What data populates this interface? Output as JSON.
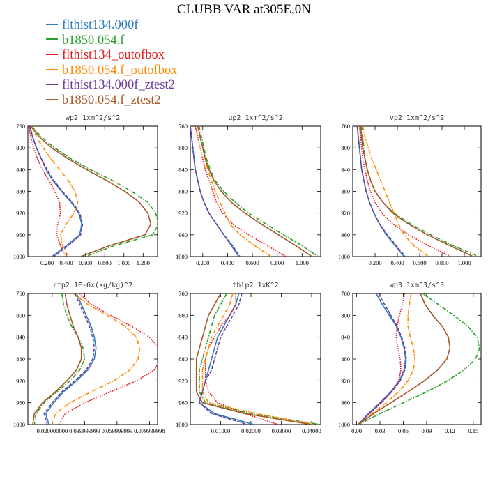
{
  "title": "CLUBB VAR at305E,0N",
  "colors": {
    "flthist134.000f": "#2f7cbf",
    "b1850.054.f": "#2ca02c",
    "flthist134_outofbox": "#e41a1c",
    "b1850.054.f_outofbox": "#ff8c00",
    "flthist134.000f_ztest2": "#6a3d9a",
    "b1850.054.f_ztest2": "#a65628"
  },
  "legend": [
    {
      "label": "flthist134.000f",
      "color": "#2f7cbf"
    },
    {
      "label": "b1850.054.f",
      "color": "#2ca02c"
    },
    {
      "label": "flthist134_outofbox",
      "color": "#e41a1c"
    },
    {
      "label": "b1850.054.f_outofbox",
      "color": "#ff8c00"
    },
    {
      "label": "flthist134.000f_ztest2",
      "color": "#6a3d9a"
    },
    {
      "label": "b1850.054.f_ztest2",
      "color": "#a65628"
    }
  ],
  "chart_data": [
    {
      "type": "line",
      "title": "wp2  1xm^2/s^2",
      "y": [
        760,
        780,
        800,
        820,
        840,
        860,
        880,
        900,
        920,
        940,
        960,
        980,
        1000
      ],
      "xlim": [
        0,
        1.35
      ],
      "ylim": [
        1000,
        760
      ],
      "xticks": [
        0.2,
        0.4,
        0.6,
        0.8,
        1.0,
        1.2
      ],
      "xtick_labels": [
        "0.200",
        "0.400",
        "0.600",
        "0.800",
        "1.000",
        "1.200"
      ],
      "yticks": [
        760,
        800,
        840,
        880,
        920,
        960,
        1000
      ],
      "series": [
        {
          "key": "flthist134.000f",
          "style": "solid",
          "x": [
            0.02,
            0.05,
            0.09,
            0.14,
            0.19,
            0.26,
            0.35,
            0.45,
            0.53,
            0.56,
            0.54,
            0.4,
            0.25
          ]
        },
        {
          "key": "b1850.054.f",
          "style": "dashdot",
          "x": [
            0.04,
            0.14,
            0.28,
            0.45,
            0.65,
            0.88,
            1.08,
            1.25,
            1.33,
            1.36,
            1.3,
            0.9,
            0.6
          ]
        },
        {
          "key": "flthist134_outofbox",
          "style": "dotted",
          "x": [
            0.01,
            0.03,
            0.06,
            0.1,
            0.15,
            0.22,
            0.28,
            0.33,
            0.34,
            0.31,
            0.3,
            0.34,
            0.4
          ]
        },
        {
          "key": "b1850.054.f_outofbox",
          "style": "dashdot",
          "x": [
            0.04,
            0.09,
            0.16,
            0.24,
            0.33,
            0.42,
            0.49,
            0.52,
            0.48,
            0.4,
            0.34,
            0.36,
            0.42
          ]
        },
        {
          "key": "flthist134.000f_ztest2",
          "style": "dashed",
          "x": [
            0.02,
            0.05,
            0.09,
            0.14,
            0.2,
            0.27,
            0.36,
            0.46,
            0.54,
            0.57,
            0.55,
            0.42,
            0.27
          ]
        },
        {
          "key": "b1850.054.f_ztest2",
          "style": "solid",
          "x": [
            0.03,
            0.12,
            0.25,
            0.42,
            0.61,
            0.82,
            1.01,
            1.16,
            1.25,
            1.28,
            1.22,
            0.85,
            0.55
          ]
        }
      ]
    },
    {
      "type": "line",
      "title": "up2  1xm^2/s^2",
      "y": [
        760,
        780,
        800,
        820,
        840,
        860,
        880,
        900,
        920,
        940,
        960,
        980,
        1000
      ],
      "xlim": [
        0.1,
        1.15
      ],
      "ylim": [
        1000,
        760
      ],
      "xticks": [
        0.2,
        0.4,
        0.6,
        0.8,
        1.0
      ],
      "xtick_labels": [
        "0.200",
        "0.400",
        "0.600",
        "0.800",
        "1.000"
      ],
      "yticks": [
        760,
        800,
        840,
        880,
        920,
        960,
        1000
      ],
      "series": [
        {
          "key": "flthist134.000f",
          "style": "solid",
          "x": [
            0.1,
            0.11,
            0.12,
            0.13,
            0.14,
            0.16,
            0.18,
            0.21,
            0.25,
            0.31,
            0.37,
            0.43,
            0.49
          ]
        },
        {
          "key": "b1850.054.f",
          "style": "dashdot",
          "x": [
            0.17,
            0.19,
            0.21,
            0.23,
            0.26,
            0.3,
            0.37,
            0.46,
            0.57,
            0.71,
            0.85,
            1.0,
            1.13
          ]
        },
        {
          "key": "flthist134_outofbox",
          "style": "dotted",
          "x": [
            0.14,
            0.16,
            0.18,
            0.2,
            0.22,
            0.25,
            0.28,
            0.31,
            0.36,
            0.44,
            0.57,
            0.72,
            0.87
          ]
        },
        {
          "key": "b1850.054.f_outofbox",
          "style": "dashdot",
          "x": [
            0.16,
            0.18,
            0.2,
            0.22,
            0.24,
            0.27,
            0.3,
            0.34,
            0.38,
            0.42,
            0.5,
            0.62,
            0.75
          ]
        },
        {
          "key": "flthist134.000f_ztest2",
          "style": "dashed",
          "x": [
            0.1,
            0.11,
            0.12,
            0.13,
            0.14,
            0.16,
            0.18,
            0.21,
            0.25,
            0.31,
            0.37,
            0.44,
            0.5
          ]
        },
        {
          "key": "b1850.054.f_ztest2",
          "style": "solid",
          "x": [
            0.16,
            0.18,
            0.2,
            0.22,
            0.25,
            0.29,
            0.35,
            0.43,
            0.54,
            0.67,
            0.81,
            0.95,
            1.08
          ]
        }
      ]
    },
    {
      "type": "line",
      "title": "vp2  1xm^2/s^2",
      "y": [
        760,
        780,
        800,
        820,
        840,
        860,
        880,
        900,
        920,
        940,
        960,
        980,
        1000
      ],
      "xlim": [
        0,
        1.15
      ],
      "ylim": [
        1000,
        760
      ],
      "xticks": [
        0.2,
        0.4,
        0.6,
        0.8,
        1.0
      ],
      "xtick_labels": [
        "0.200",
        "0.400",
        "0.600",
        "0.800",
        "1.000"
      ],
      "yticks": [
        760,
        800,
        840,
        880,
        920,
        960,
        1000
      ],
      "series": [
        {
          "key": "flthist134.000f",
          "style": "solid",
          "x": [
            0.04,
            0.05,
            0.06,
            0.07,
            0.08,
            0.1,
            0.12,
            0.15,
            0.19,
            0.24,
            0.3,
            0.38,
            0.46
          ]
        },
        {
          "key": "b1850.054.f",
          "style": "dashdot",
          "x": [
            0.08,
            0.09,
            0.1,
            0.11,
            0.13,
            0.16,
            0.2,
            0.27,
            0.37,
            0.52,
            0.7,
            0.9,
            1.13
          ]
        },
        {
          "key": "flthist134_outofbox",
          "style": "dotted",
          "x": [
            0.06,
            0.07,
            0.08,
            0.09,
            0.11,
            0.13,
            0.16,
            0.2,
            0.26,
            0.36,
            0.5,
            0.68,
            0.88
          ]
        },
        {
          "key": "b1850.054.f_outofbox",
          "style": "dashdot",
          "x": [
            0.09,
            0.11,
            0.14,
            0.17,
            0.21,
            0.25,
            0.29,
            0.33,
            0.37,
            0.41,
            0.46,
            0.55,
            0.68
          ]
        },
        {
          "key": "flthist134.000f_ztest2",
          "style": "dashed",
          "x": [
            0.04,
            0.05,
            0.06,
            0.07,
            0.08,
            0.1,
            0.12,
            0.15,
            0.19,
            0.24,
            0.31,
            0.39,
            0.47
          ]
        },
        {
          "key": "b1850.054.f_ztest2",
          "style": "solid",
          "x": [
            0.07,
            0.08,
            0.09,
            0.11,
            0.13,
            0.16,
            0.2,
            0.27,
            0.36,
            0.5,
            0.67,
            0.87,
            1.08
          ]
        }
      ]
    },
    {
      "type": "line",
      "title": "rtp2  1E-6x(kg/kg)^2",
      "y": [
        760,
        780,
        800,
        820,
        840,
        860,
        880,
        900,
        920,
        940,
        960,
        980,
        1000
      ],
      "xlim": [
        0.005,
        0.085
      ],
      "ylim": [
        1000,
        760
      ],
      "xticks": [
        0.02,
        0.04,
        0.06,
        0.08
      ],
      "xtick_labels": [
        "0.020000000",
        "0.039999999",
        "0.059999999",
        "0.079999998"
      ],
      "yticks": [
        760,
        800,
        840,
        880,
        920,
        960,
        1000
      ],
      "series": [
        {
          "key": "flthist134.000f",
          "style": "solid",
          "x": [
            0.035,
            0.038,
            0.041,
            0.044,
            0.046,
            0.047,
            0.046,
            0.042,
            0.035,
            0.027,
            0.021,
            0.016,
            0.018
          ]
        },
        {
          "key": "b1850.054.f",
          "style": "dashdot",
          "x": [
            0.026,
            0.027,
            0.029,
            0.032,
            0.036,
            0.039,
            0.04,
            0.037,
            0.031,
            0.023,
            0.015,
            0.01,
            0.009
          ]
        },
        {
          "key": "flthist134_outofbox",
          "style": "dotted",
          "x": [
            0.037,
            0.044,
            0.056,
            0.069,
            0.08,
            0.086,
            0.087,
            0.083,
            0.072,
            0.056,
            0.04,
            0.028,
            0.024
          ]
        },
        {
          "key": "b1850.054.f_outofbox",
          "style": "dashdot",
          "x": [
            0.033,
            0.042,
            0.054,
            0.065,
            0.072,
            0.074,
            0.073,
            0.068,
            0.058,
            0.044,
            0.031,
            0.022,
            0.02
          ]
        },
        {
          "key": "flthist134.000f_ztest2",
          "style": "dashed",
          "x": [
            0.034,
            0.037,
            0.04,
            0.043,
            0.045,
            0.046,
            0.045,
            0.041,
            0.034,
            0.026,
            0.02,
            0.015,
            0.017
          ]
        },
        {
          "key": "b1850.054.f_ztest2",
          "style": "solid",
          "x": [
            0.028,
            0.029,
            0.031,
            0.033,
            0.036,
            0.038,
            0.038,
            0.035,
            0.029,
            0.022,
            0.014,
            0.009,
            0.008
          ]
        }
      ]
    },
    {
      "type": "line",
      "title": "thlp2  1xK^2",
      "y": [
        760,
        780,
        800,
        820,
        840,
        860,
        880,
        900,
        920,
        940,
        960,
        980,
        1000
      ],
      "xlim": [
        0,
        0.043
      ],
      "ylim": [
        1000,
        760
      ],
      "xticks": [
        0.01,
        0.02,
        0.03,
        0.04
      ],
      "xtick_labels": [
        "0.01000",
        "0.02000",
        "0.03000",
        "0.04000"
      ],
      "yticks": [
        760,
        800,
        840,
        880,
        920,
        960,
        1000
      ],
      "series": [
        {
          "key": "flthist134.000f",
          "style": "solid",
          "x": [
            0.016,
            0.015,
            0.013,
            0.011,
            0.009,
            0.008,
            0.007,
            0.006,
            0.005,
            0.004,
            0.003,
            0.008,
            0.021
          ]
        },
        {
          "key": "b1850.054.f",
          "style": "dashdot",
          "x": [
            0.012,
            0.01,
            0.008,
            0.007,
            0.006,
            0.005,
            0.004,
            0.003,
            0.003,
            0.003,
            0.005,
            0.02,
            0.043
          ]
        },
        {
          "key": "flthist134_outofbox",
          "style": "dotted",
          "x": [
            0.015,
            0.015,
            0.013,
            0.01,
            0.008,
            0.006,
            0.005,
            0.005,
            0.005,
            0.006,
            0.009,
            0.018,
            0.029
          ]
        },
        {
          "key": "b1850.054.f_outofbox",
          "style": "dashdot",
          "x": [
            0.014,
            0.013,
            0.011,
            0.009,
            0.007,
            0.006,
            0.005,
            0.004,
            0.004,
            0.004,
            0.006,
            0.022,
            0.041
          ]
        },
        {
          "key": "flthist134.000f_ztest2",
          "style": "dashed",
          "x": [
            0.017,
            0.016,
            0.014,
            0.012,
            0.01,
            0.009,
            0.008,
            0.007,
            0.005,
            0.004,
            0.003,
            0.007,
            0.019
          ]
        },
        {
          "key": "b1850.054.f_ztest2",
          "style": "solid",
          "x": [
            0.01,
            0.008,
            0.006,
            0.005,
            0.004,
            0.003,
            0.002,
            0.002,
            0.002,
            0.002,
            0.004,
            0.018,
            0.04
          ]
        }
      ]
    },
    {
      "type": "line",
      "title": "wp3  1xm^3/s^3",
      "y": [
        760,
        780,
        800,
        820,
        840,
        860,
        880,
        900,
        920,
        940,
        960,
        980,
        1000
      ],
      "xlim": [
        -0.005,
        0.16
      ],
      "ylim": [
        1000,
        760
      ],
      "xticks": [
        0.0,
        0.03,
        0.06,
        0.09,
        0.12,
        0.15
      ],
      "xtick_labels": [
        "0.00",
        "0.03",
        "0.06",
        "0.09",
        "0.12",
        "0.15"
      ],
      "yticks": [
        760,
        800,
        840,
        880,
        920,
        960,
        1000
      ],
      "series": [
        {
          "key": "flthist134.000f",
          "style": "solid",
          "x": [
            0.025,
            0.033,
            0.042,
            0.051,
            0.057,
            0.061,
            0.063,
            0.061,
            0.055,
            0.044,
            0.03,
            0.015,
            0.002
          ]
        },
        {
          "key": "b1850.054.f",
          "style": "dashdot",
          "x": [
            0.085,
            0.105,
            0.125,
            0.143,
            0.155,
            0.158,
            0.153,
            0.138,
            0.117,
            0.09,
            0.06,
            0.03,
            0.003
          ]
        },
        {
          "key": "flthist134_outofbox",
          "style": "dotted",
          "x": [
            0.062,
            0.059,
            0.055,
            0.052,
            0.051,
            0.053,
            0.056,
            0.057,
            0.054,
            0.045,
            0.032,
            0.017,
            0.002
          ]
        },
        {
          "key": "b1850.054.f_outofbox",
          "style": "dashdot",
          "x": [
            0.07,
            0.068,
            0.066,
            0.066,
            0.069,
            0.073,
            0.075,
            0.073,
            0.066,
            0.054,
            0.038,
            0.02,
            0.003
          ]
        },
        {
          "key": "flthist134.000f_ztest2",
          "style": "dashed",
          "x": [
            0.028,
            0.036,
            0.044,
            0.052,
            0.058,
            0.062,
            0.064,
            0.062,
            0.056,
            0.045,
            0.031,
            0.016,
            0.002
          ]
        },
        {
          "key": "b1850.054.f_ztest2",
          "style": "solid",
          "x": [
            0.082,
            0.088,
            0.098,
            0.11,
            0.118,
            0.12,
            0.116,
            0.104,
            0.087,
            0.066,
            0.044,
            0.022,
            0.002
          ]
        }
      ]
    }
  ]
}
